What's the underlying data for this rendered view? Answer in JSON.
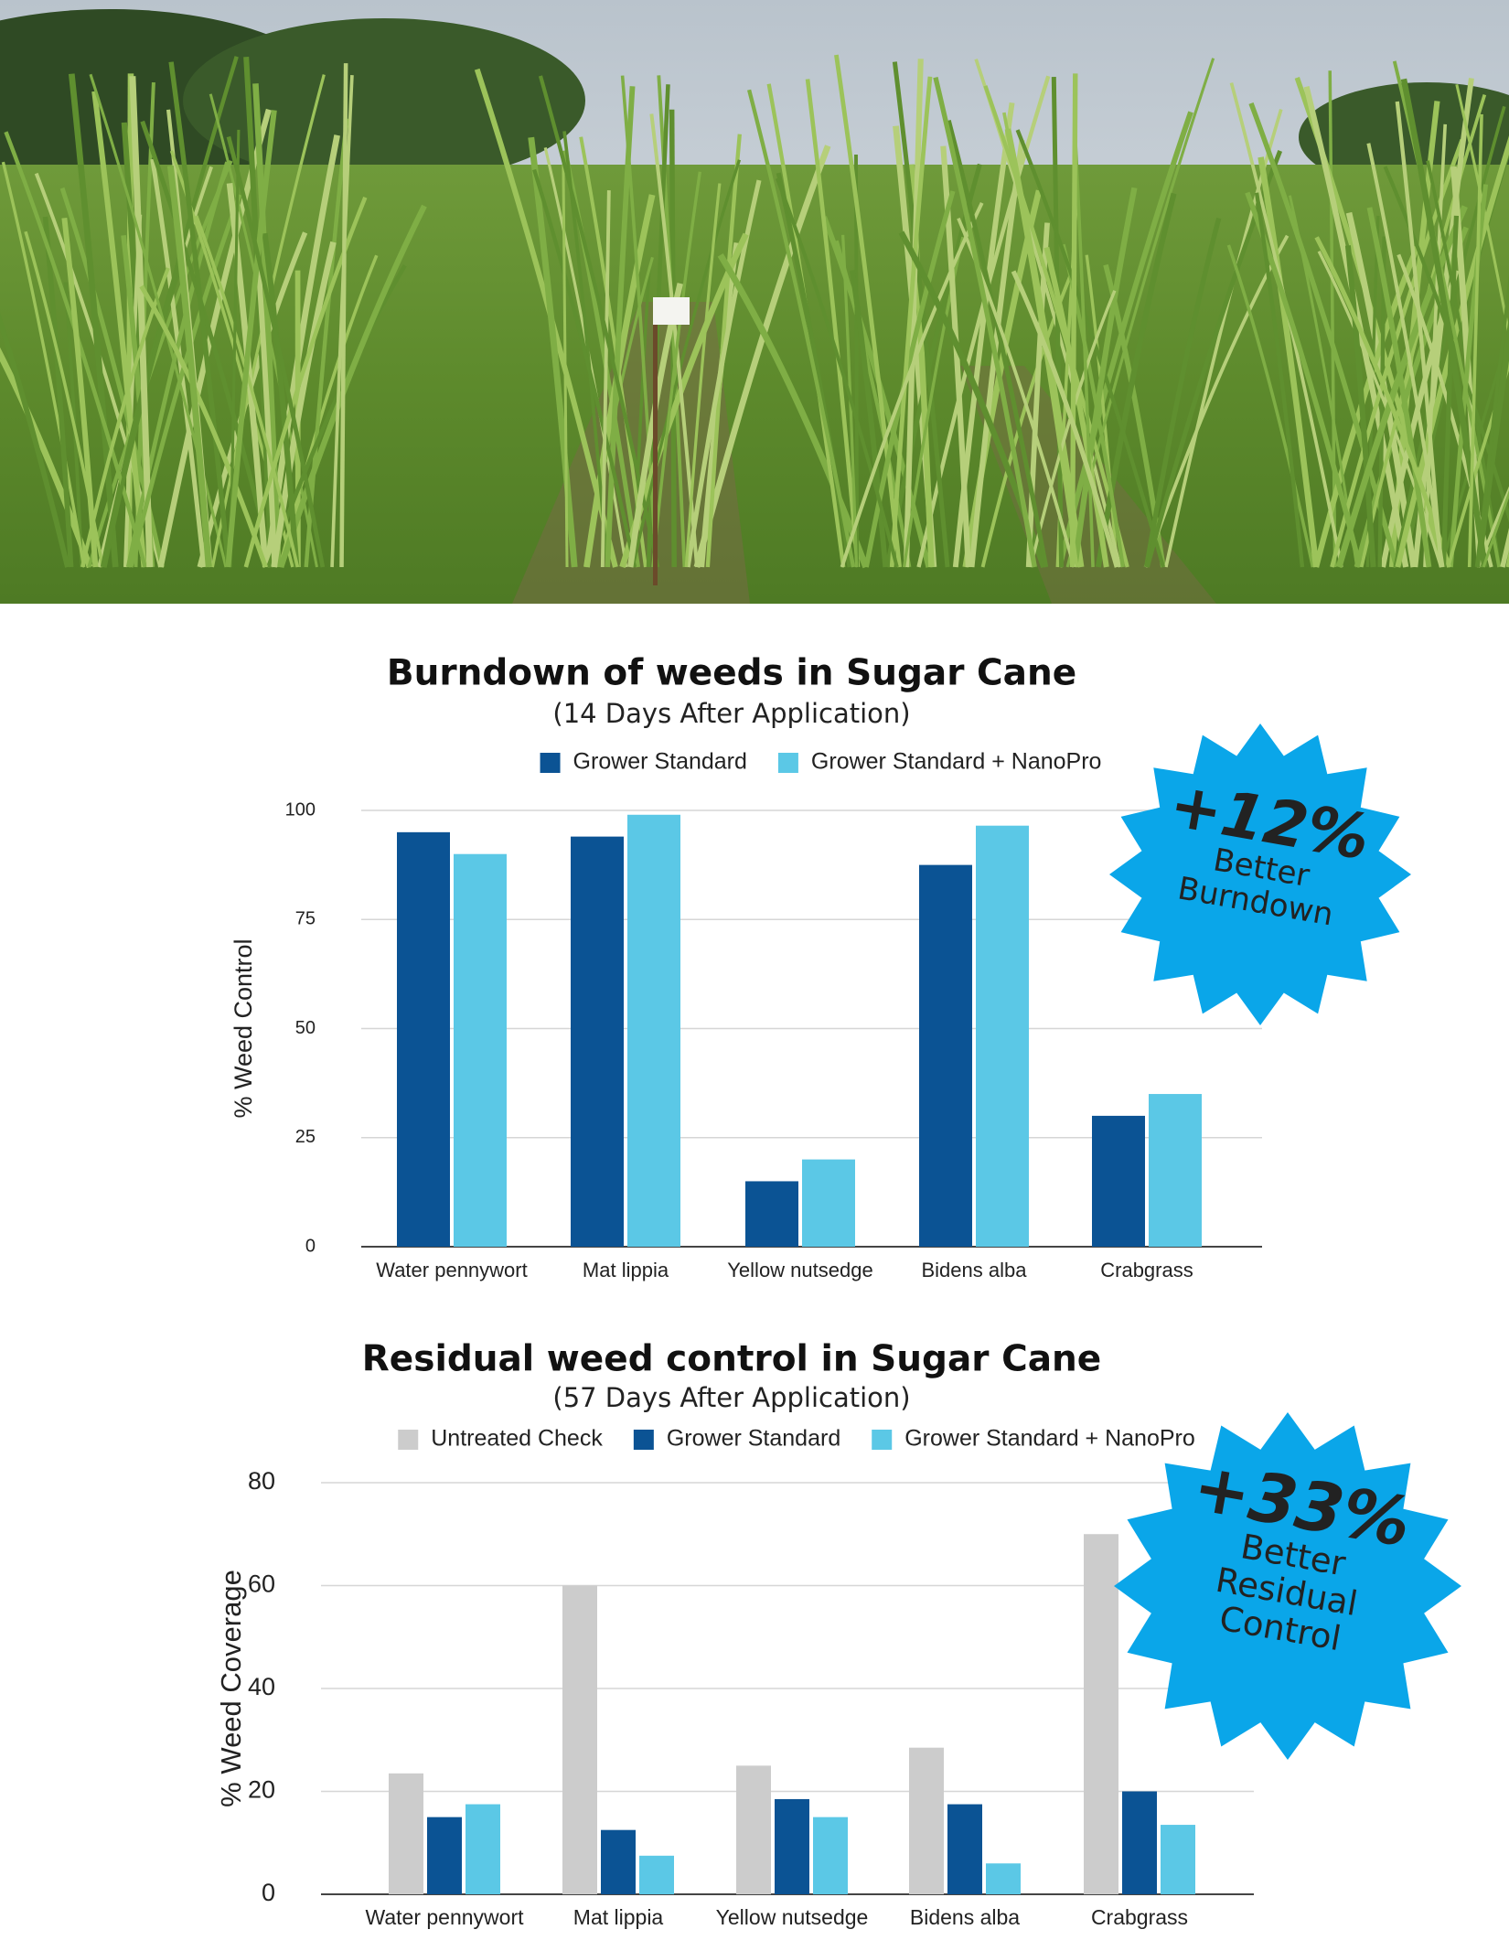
{
  "chart_data": [
    {
      "type": "bar",
      "title": "Burndown of weeds in Sugar Cane",
      "subtitle": "(14 Days After Application)",
      "y_label": "% Weed Control",
      "categories": [
        "Water pennywort",
        "Mat lippia",
        "Yellow nutsedge",
        "Bidens alba",
        "Crabgrass"
      ],
      "series": [
        {
          "name": "Grower Standard",
          "color": "#0b5394",
          "values": [
            95,
            94,
            15,
            87.5,
            30
          ]
        },
        {
          "name": "Grower Standard + NanoPro",
          "color": "#5bc8e6",
          "values": [
            90,
            99,
            20,
            96.5,
            35
          ]
        }
      ],
      "ylim": [
        0,
        100
      ],
      "yticks": [
        0,
        25,
        50,
        75,
        100
      ],
      "grid": true,
      "legend": "top",
      "annotations": [
        "+12%",
        "Better",
        "Burndown"
      ],
      "annotation_color": "#0aa6e9"
    },
    {
      "type": "bar",
      "title": "Residual weed control in Sugar Cane",
      "subtitle": "(57 Days After Application)",
      "y_label": "% Weed Coverage",
      "categories": [
        "Water pennywort",
        "Mat lippia",
        "Yellow nutsedge",
        "Bidens alba",
        "Crabgrass"
      ],
      "series": [
        {
          "name": "Untreated Check",
          "color": "#cccccc",
          "values": [
            23.5,
            60,
            25,
            28.5,
            70
          ]
        },
        {
          "name": "Grower Standard",
          "color": "#0b5394",
          "values": [
            15,
            12.5,
            18.5,
            17.5,
            20
          ]
        },
        {
          "name": "Grower Standard + NanoPro",
          "color": "#5bc8e6",
          "values": [
            17.5,
            7.5,
            15,
            6,
            13.5
          ]
        }
      ],
      "ylim": [
        0,
        80
      ],
      "yticks": [
        0,
        20,
        40,
        60,
        80
      ],
      "grid": true,
      "legend": "top",
      "annotations": [
        "+33%",
        "Better",
        "Residual",
        "Control"
      ],
      "annotation_color": "#0aa6e9"
    }
  ]
}
